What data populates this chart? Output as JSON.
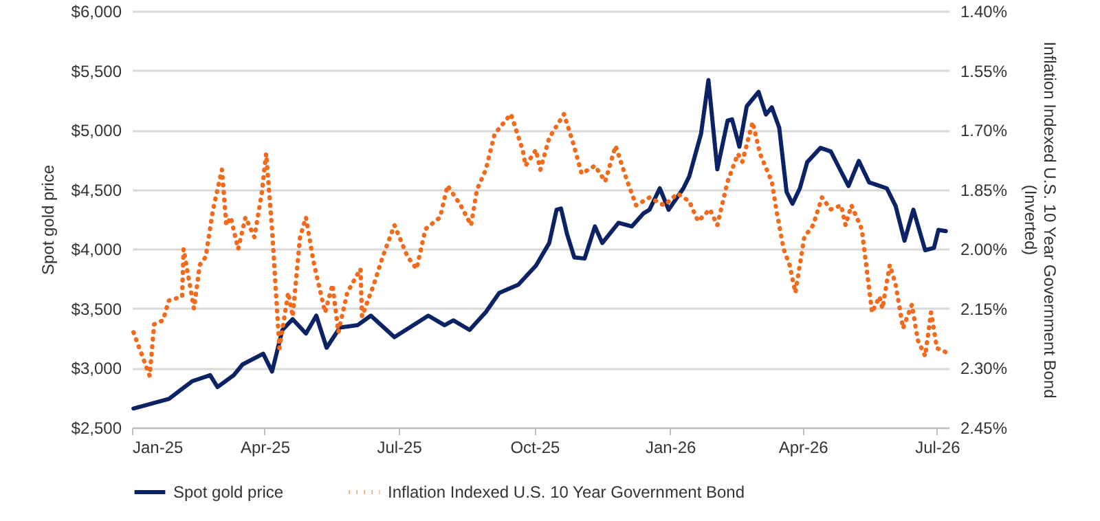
{
  "chart_data": {
    "type": "line",
    "ylabel": "Spot gold price",
    "y2label": "Inflation Indexed U.S. 10 Year Government Bond (Inverted)",
    "xlim": [
      "2025-01-01",
      "2026-07-09"
    ],
    "xticks": [
      {
        "value": "2025-01-01",
        "label": "Jan-25"
      },
      {
        "value": "2025-04-01",
        "label": "Apr-25"
      },
      {
        "value": "2025-07-01",
        "label": "Jul-25"
      },
      {
        "value": "2025-10-01",
        "label": "Oct-25"
      },
      {
        "value": "2026-01-01",
        "label": "Jan-26"
      },
      {
        "value": "2026-04-01",
        "label": "Apr-26"
      },
      {
        "value": "2026-07-01",
        "label": "Jul-26"
      }
    ],
    "ylim": [
      2500,
      6000
    ],
    "yticks": [
      {
        "value": 2500,
        "label": "$2,500"
      },
      {
        "value": 3000,
        "label": "$3,000"
      },
      {
        "value": 3500,
        "label": "$3,500"
      },
      {
        "value": 4000,
        "label": "$4,000"
      },
      {
        "value": 4500,
        "label": "$4,500"
      },
      {
        "value": 5000,
        "label": "$5,000"
      },
      {
        "value": 5500,
        "label": "$5,500"
      },
      {
        "value": 6000,
        "label": "$6,000"
      }
    ],
    "y2lim": [
      2.45,
      1.4
    ],
    "y2ticks": [
      {
        "value": 1.4,
        "label": "1.40%"
      },
      {
        "value": 1.55,
        "label": "1.55%"
      },
      {
        "value": 1.7,
        "label": "1.70%"
      },
      {
        "value": 1.85,
        "label": "1.85%"
      },
      {
        "value": 2.0,
        "label": "2.00%"
      },
      {
        "value": 2.15,
        "label": "2.15%"
      },
      {
        "value": 2.3,
        "label": "2.30%"
      },
      {
        "value": 2.45,
        "label": "2.45%"
      }
    ],
    "grid": "y",
    "legend": "bottom",
    "series": [
      {
        "name": "Spot gold price",
        "color": "#0b2265",
        "line_style": "solid",
        "x": [
          "2025-01-02",
          "2025-01-26",
          "2025-02-11",
          "2025-02-23",
          "2025-02-28",
          "2025-03-11",
          "2025-03-17",
          "2025-03-31",
          "2025-04-06",
          "2025-04-13",
          "2025-04-20",
          "2025-04-29",
          "2025-05-06",
          "2025-05-13",
          "2025-05-22",
          "2025-06-03",
          "2025-06-12",
          "2025-06-28",
          "2025-07-21",
          "2025-08-01",
          "2025-08-07",
          "2025-08-18",
          "2025-08-29",
          "2025-09-07",
          "2025-09-20",
          "2025-10-02",
          "2025-10-11",
          "2025-10-16",
          "2025-10-19",
          "2025-10-23",
          "2025-10-28",
          "2025-11-04",
          "2025-11-11",
          "2025-11-16",
          "2025-11-27",
          "2025-12-06",
          "2025-12-14",
          "2025-12-18",
          "2025-12-25",
          "2025-12-31",
          "2026-01-10",
          "2026-01-14",
          "2026-01-22",
          "2026-01-27",
          "2026-02-02",
          "2026-02-09",
          "2026-02-12",
          "2026-02-17",
          "2026-02-22",
          "2026-03-02",
          "2026-03-07",
          "2026-03-11",
          "2026-03-16",
          "2026-03-21",
          "2026-03-25",
          "2026-03-30",
          "2026-04-04",
          "2026-04-13",
          "2026-04-20",
          "2026-04-27",
          "2026-05-02",
          "2026-05-09",
          "2026-05-16",
          "2026-05-28",
          "2026-06-03",
          "2026-06-09",
          "2026-06-15",
          "2026-06-23",
          "2026-06-29",
          "2026-07-02",
          "2026-07-07"
        ],
        "values": [
          2660,
          2740,
          2890,
          2940,
          2840,
          2940,
          3030,
          3120,
          2970,
          3320,
          3410,
          3290,
          3440,
          3170,
          3340,
          3360,
          3440,
          3260,
          3440,
          3360,
          3400,
          3320,
          3470,
          3630,
          3700,
          3860,
          4050,
          4330,
          4340,
          4130,
          3930,
          3920,
          4190,
          4050,
          4220,
          4190,
          4300,
          4330,
          4510,
          4330,
          4510,
          4610,
          4970,
          5420,
          4670,
          5080,
          5090,
          4860,
          5200,
          5320,
          5130,
          5190,
          5020,
          4480,
          4380,
          4510,
          4730,
          4850,
          4820,
          4650,
          4530,
          4740,
          4560,
          4510,
          4360,
          4070,
          4330,
          3990,
          4010,
          4160,
          4150
        ]
      },
      {
        "name": "Inflation Indexed U.S. 10 Year Government Bond",
        "color": "#f26b1d",
        "line_style": "dotted",
        "axis": "y2",
        "x": [
          "2025-01-02",
          "2025-01-09",
          "2025-01-13",
          "2025-01-16",
          "2025-01-22",
          "2025-01-26",
          "2025-02-04",
          "2025-02-05",
          "2025-02-12",
          "2025-02-16",
          "2025-02-20",
          "2025-02-25",
          "2025-03-03",
          "2025-03-06",
          "2025-03-09",
          "2025-03-14",
          "2025-03-19",
          "2025-03-25",
          "2025-03-30",
          "2025-04-02",
          "2025-04-06",
          "2025-04-11",
          "2025-04-17",
          "2025-04-20",
          "2025-04-25",
          "2025-04-29",
          "2025-05-04",
          "2025-05-12",
          "2025-05-17",
          "2025-05-21",
          "2025-05-27",
          "2025-06-05",
          "2025-06-06",
          "2025-06-14",
          "2025-06-20",
          "2025-06-28",
          "2025-07-07",
          "2025-07-13",
          "2025-07-19",
          "2025-07-29",
          "2025-08-03",
          "2025-08-12",
          "2025-08-19",
          "2025-08-23",
          "2025-08-29",
          "2025-09-04",
          "2025-09-15",
          "2025-09-23",
          "2025-09-25",
          "2025-10-02",
          "2025-10-05",
          "2025-10-11",
          "2025-10-21",
          "2025-10-27",
          "2025-11-02",
          "2025-11-11",
          "2025-11-18",
          "2025-11-25",
          "2025-12-03",
          "2025-12-09",
          "2025-12-18",
          "2025-12-28",
          "2026-01-06",
          "2026-01-14",
          "2026-01-20",
          "2026-01-28",
          "2026-02-02",
          "2026-02-09",
          "2026-02-16",
          "2026-02-19",
          "2026-02-26",
          "2026-03-03",
          "2026-03-11",
          "2026-03-14",
          "2026-03-19",
          "2026-03-23",
          "2026-03-27",
          "2026-04-02",
          "2026-04-08",
          "2026-04-14",
          "2026-04-20",
          "2026-04-27",
          "2026-04-30",
          "2026-05-04",
          "2026-05-11",
          "2026-05-18",
          "2026-05-23",
          "2026-05-25",
          "2026-05-30",
          "2026-06-03",
          "2026-06-08",
          "2026-06-14",
          "2026-06-18",
          "2026-06-23",
          "2026-06-27",
          "2026-07-01",
          "2026-07-07"
        ],
        "values": [
          2.21,
          2.28,
          2.32,
          2.19,
          2.18,
          2.13,
          2.12,
          2.0,
          2.15,
          2.04,
          2.02,
          1.9,
          1.8,
          1.94,
          1.92,
          2.0,
          1.92,
          1.97,
          1.86,
          1.76,
          1.95,
          2.25,
          2.11,
          2.17,
          1.97,
          1.92,
          2.03,
          2.16,
          2.09,
          2.21,
          2.11,
          2.05,
          2.17,
          2.09,
          2.02,
          1.94,
          2.02,
          2.05,
          1.95,
          1.92,
          1.84,
          1.89,
          1.94,
          1.85,
          1.8,
          1.71,
          1.66,
          1.75,
          1.79,
          1.75,
          1.8,
          1.72,
          1.66,
          1.73,
          1.81,
          1.79,
          1.83,
          1.74,
          1.83,
          1.89,
          1.87,
          1.89,
          1.86,
          1.88,
          1.93,
          1.9,
          1.94,
          1.83,
          1.76,
          1.78,
          1.68,
          1.76,
          1.83,
          1.9,
          2.0,
          2.04,
          2.11,
          1.97,
          1.94,
          1.87,
          1.9,
          1.89,
          1.94,
          1.89,
          1.95,
          2.16,
          2.12,
          2.15,
          2.04,
          2.09,
          2.2,
          2.14,
          2.23,
          2.27,
          2.16,
          2.25,
          2.26
        ]
      }
    ]
  }
}
